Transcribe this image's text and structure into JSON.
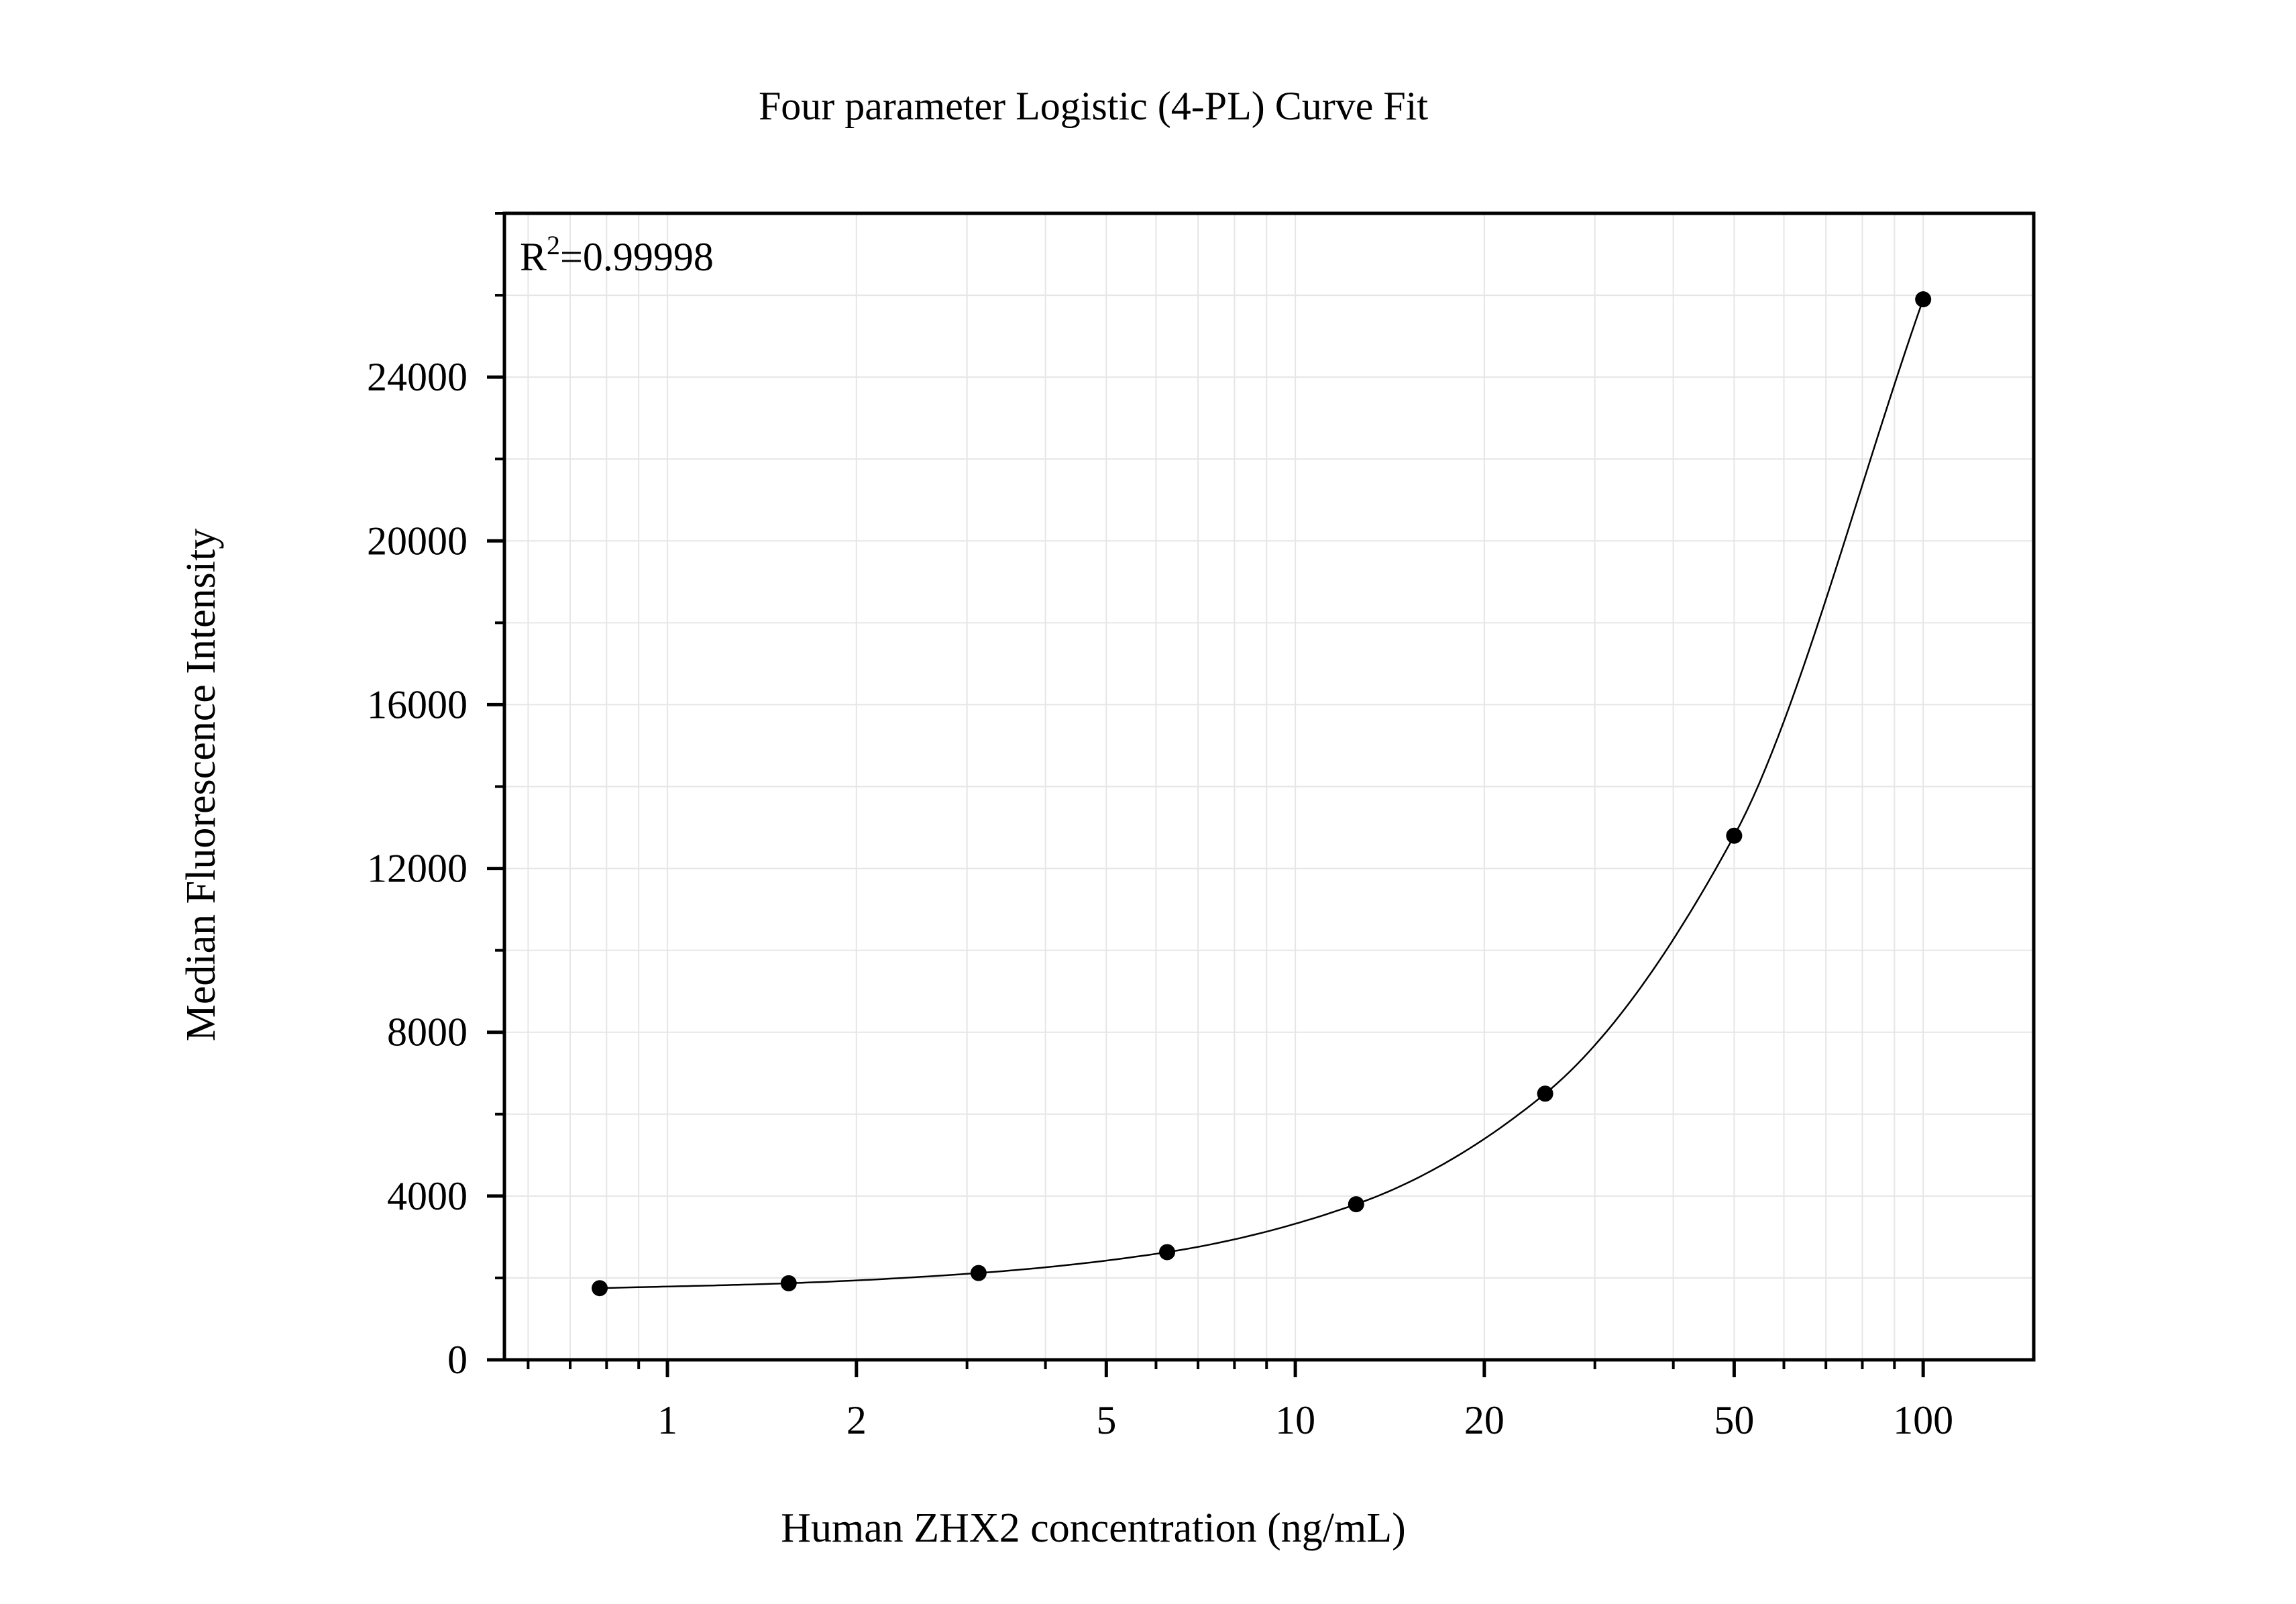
{
  "chart_data": {
    "type": "scatter",
    "title": "Four parameter Logistic (4-PL) Curve Fit",
    "xlabel": "Human ZHX2 concentration (ng/mL)",
    "ylabel": "Median Fluorescence Intensity",
    "x_scale": "log",
    "xlim": [
      0.55,
      150
    ],
    "ylim": [
      0,
      28000
    ],
    "x_ticks": [
      1,
      2,
      5,
      10,
      20,
      50,
      100
    ],
    "x_tick_labels": [
      "1",
      "2",
      "5",
      "10",
      "20",
      "50",
      "100"
    ],
    "y_ticks": [
      0,
      4000,
      8000,
      12000,
      16000,
      20000,
      24000
    ],
    "y_tick_labels": [
      "0",
      "4000",
      "8000",
      "12000",
      "16000",
      "20000",
      "24000"
    ],
    "grid": true,
    "annotation": {
      "base": "R",
      "superscript": "2",
      "rest": "=0.99998"
    },
    "series": [
      {
        "kind": "points",
        "x": [
          0.78,
          1.56,
          3.13,
          6.25,
          12.5,
          25,
          50,
          100
        ],
        "y": [
          1750,
          1870,
          2120,
          2630,
          3800,
          6500,
          12800,
          25900
        ]
      },
      {
        "kind": "fit-curve",
        "x_range": [
          0.78,
          100
        ]
      }
    ],
    "colors": {
      "points": "#000000",
      "curve": "#000000",
      "grid": "#e6e6e6",
      "frame": "#000000"
    }
  }
}
